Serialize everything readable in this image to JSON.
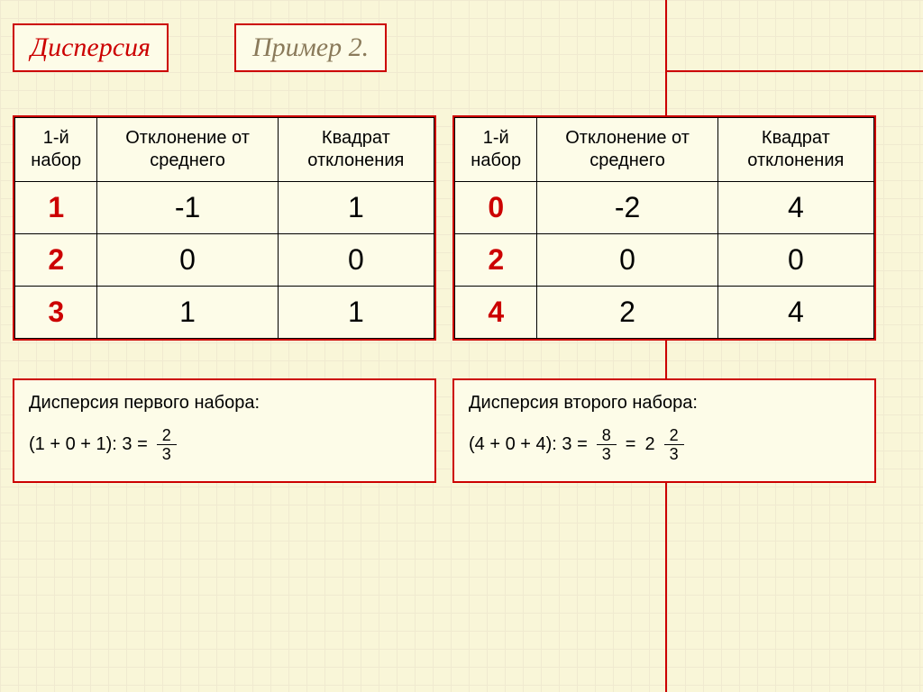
{
  "titles": {
    "main": "Дисперсия",
    "sub": "Пример 2."
  },
  "headers": {
    "col1": "1-й набор",
    "col2": "Отклонение от среднего",
    "col3": "Квадрат отклонения"
  },
  "tableLeft": {
    "rows": [
      {
        "set": "1",
        "dev": "-1",
        "sq": "1"
      },
      {
        "set": "2",
        "dev": "0",
        "sq": "0"
      },
      {
        "set": "3",
        "dev": "1",
        "sq": "1"
      }
    ]
  },
  "tableRight": {
    "rows": [
      {
        "set": "0",
        "dev": "-2",
        "sq": "4"
      },
      {
        "set": "2",
        "dev": "0",
        "sq": "0"
      },
      {
        "set": "4",
        "dev": "2",
        "sq": "4"
      }
    ]
  },
  "calcLeft": {
    "title": "Дисперсия первого набора:",
    "expr": "(1 + 0 + 1): 3 =",
    "frac": {
      "n": "2",
      "d": "3"
    }
  },
  "calcRight": {
    "title": "Дисперсия второго набора:",
    "expr": "(4 + 0 + 4): 3 =",
    "frac1": {
      "n": "8",
      "d": "3"
    },
    "eq": "=",
    "whole": "2",
    "frac2": {
      "n": "2",
      "d": "3"
    }
  },
  "style": {
    "accent_color": "#cc0000",
    "bg_color": "#f9f6d8",
    "panel_bg": "#fdfce8",
    "grid_color": "#f0ead0",
    "header_fontsize": 20,
    "cell_fontsize": 32,
    "title_fontsize": 30,
    "calc_fontsize": 20
  }
}
